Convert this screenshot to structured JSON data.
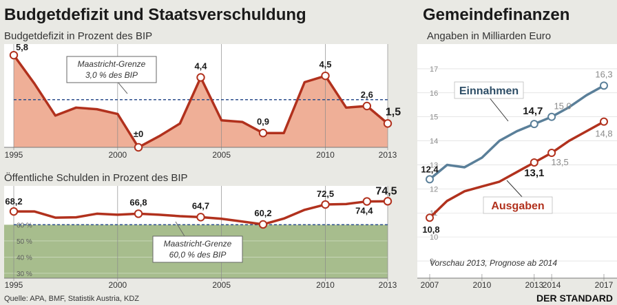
{
  "colors": {
    "background": "#e9e9e4",
    "plot_background": "#ffffff",
    "deficit_fill": "#efaf97",
    "deficit_line": "#b1311d",
    "green_zone": "#a7bd8d",
    "maastricht_line": "#2b4e8c",
    "einnahmen_line": "#5a7f99",
    "ausgaben_line": "#b1311d",
    "einnahmen_label": "#2d4d66",
    "ausgaben_label": "#b1311d"
  },
  "header": {
    "left_title": "Budgetdefizit und Staatsverschuldung",
    "right_title": "Gemeindefinanzen"
  },
  "footer": {
    "source": "Quelle: APA, BMF, Statistik Austria, KDZ",
    "brand": "DER STANDARD"
  },
  "chart_data": [
    {
      "id": "budgetdefizit",
      "type": "area",
      "title": "Budgetdefizit in Prozent des BIP",
      "x": [
        1995,
        1996,
        1997,
        1998,
        1999,
        2000,
        2001,
        2002,
        2003,
        2004,
        2005,
        2006,
        2007,
        2008,
        2009,
        2010,
        2011,
        2012,
        2013
      ],
      "values": [
        5.8,
        4.0,
        2.0,
        2.5,
        2.4,
        2.1,
        0.0,
        0.7,
        1.5,
        4.4,
        1.7,
        1.6,
        0.9,
        0.9,
        4.1,
        4.5,
        2.5,
        2.6,
        1.5
      ],
      "ylim": [
        0,
        6.5
      ],
      "xticks": [
        1995,
        2000,
        2005,
        2010,
        2013
      ],
      "point_labels": [
        {
          "x": 1995,
          "text": "5,8"
        },
        {
          "x": 2001,
          "text": "±0"
        },
        {
          "x": 2004,
          "text": "4,4"
        },
        {
          "x": 2007,
          "text": "0,9"
        },
        {
          "x": 2010,
          "text": "4,5"
        },
        {
          "x": 2012,
          "text": "2,6"
        },
        {
          "x": 2013,
          "text": "1,5"
        }
      ],
      "marked_points": [
        1995,
        2001,
        2004,
        2007,
        2010,
        2012,
        2013
      ],
      "reference": {
        "value": 3.0,
        "label_line1": "Maastricht-Grenze",
        "label_line2": "3,0 % des BIP"
      }
    },
    {
      "id": "schulden",
      "type": "line",
      "title": "Öffentliche Schulden in Prozent des BIP",
      "x": [
        1995,
        1996,
        1997,
        1998,
        1999,
        2000,
        2001,
        2002,
        2003,
        2004,
        2005,
        2006,
        2007,
        2008,
        2009,
        2010,
        2011,
        2012,
        2013
      ],
      "values": [
        68.2,
        68.2,
        64.4,
        64.6,
        66.8,
        66.2,
        66.8,
        66.2,
        65.3,
        64.7,
        63.7,
        62.0,
        60.2,
        63.8,
        69.2,
        72.5,
        72.8,
        74.4,
        74.5
      ],
      "ylim": [
        27,
        84
      ],
      "yticks": [
        {
          "v": 60,
          "label": "60 %"
        },
        {
          "v": 50,
          "label": "50 %"
        },
        {
          "v": 40,
          "label": "40 %"
        },
        {
          "v": 30,
          "label": "30 %"
        }
      ],
      "xticks": [
        1995,
        2000,
        2005,
        2010,
        2013
      ],
      "point_labels": [
        {
          "x": 1995,
          "text": "68,2"
        },
        {
          "x": 2001,
          "text": "66,8"
        },
        {
          "x": 2004,
          "text": "64,7"
        },
        {
          "x": 2007,
          "text": "60,2"
        },
        {
          "x": 2010,
          "text": "72,5"
        },
        {
          "x": 2012,
          "text": "74,4"
        },
        {
          "x": 2013,
          "text": "74,5"
        }
      ],
      "marked_points": [
        1995,
        2001,
        2004,
        2007,
        2010,
        2012,
        2013
      ],
      "reference": {
        "value": 60.0,
        "label_line1": "Maastricht-Grenze",
        "label_line2": "60,0 % des BIP"
      }
    },
    {
      "id": "gemeindefinanzen",
      "type": "line",
      "title": "Angaben in Milliarden Euro",
      "x": [
        2007,
        2008,
        2009,
        2010,
        2011,
        2012,
        2013,
        2014,
        2015,
        2016,
        2017
      ],
      "series": [
        {
          "name": "Einnahmen",
          "values": [
            12.4,
            13.0,
            12.9,
            13.3,
            14.0,
            14.4,
            14.7,
            15.0,
            15.4,
            15.9,
            16.3
          ]
        },
        {
          "name": "Ausgaben",
          "values": [
            10.8,
            11.5,
            11.9,
            12.1,
            12.3,
            12.7,
            13.1,
            13.5,
            14.0,
            14.4,
            14.8
          ]
        }
      ],
      "ylim": [
        8.8,
        17.8
      ],
      "yticks": [
        9,
        10,
        11,
        12,
        13,
        14,
        15,
        16,
        17
      ],
      "xticks": [
        2007,
        2010,
        2013,
        2014,
        2017
      ],
      "marked_points": [
        2007,
        2013,
        2014,
        2017
      ],
      "point_labels": [
        {
          "series": "Einnahmen",
          "x": 2007,
          "text": "12,4"
        },
        {
          "series": "Einnahmen",
          "x": 2013,
          "text": "14,7"
        },
        {
          "series": "Einnahmen",
          "x": 2014,
          "text": "15,0"
        },
        {
          "series": "Einnahmen",
          "x": 2017,
          "text": "16,3"
        },
        {
          "series": "Ausgaben",
          "x": 2007,
          "text": "10,8"
        },
        {
          "series": "Ausgaben",
          "x": 2013,
          "text": "13,1"
        },
        {
          "series": "Ausgaben",
          "x": 2014,
          "text": "13,5"
        },
        {
          "series": "Ausgaben",
          "x": 2017,
          "text": "14,8"
        }
      ],
      "note": "Vorschau 2013, Prognose ab 2014"
    }
  ]
}
